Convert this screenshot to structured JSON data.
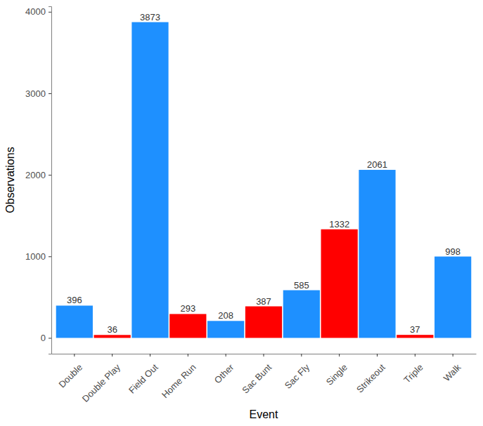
{
  "chart_data": {
    "type": "bar",
    "x_label": "Event",
    "y_label": "Observations",
    "categories": [
      "Double",
      "Double Play",
      "Field Out",
      "Home Run",
      "Other",
      "Sac Bunt",
      "Sac Fly",
      "Single",
      "Strikeout",
      "Triple",
      "Walk"
    ],
    "values": [
      396,
      36,
      3873,
      293,
      208,
      387,
      585,
      1332,
      2061,
      37,
      998
    ],
    "colors": [
      "#1e90ff",
      "#ff0000",
      "#1e90ff",
      "#ff0000",
      "#1e90ff",
      "#ff0000",
      "#1e90ff",
      "#ff0000",
      "#1e90ff",
      "#ff0000",
      "#1e90ff"
    ],
    "ylim": [
      -194,
      4067
    ],
    "yticks": [
      0,
      1000,
      2000,
      3000,
      4000
    ],
    "grid": false,
    "data_labels": true
  }
}
